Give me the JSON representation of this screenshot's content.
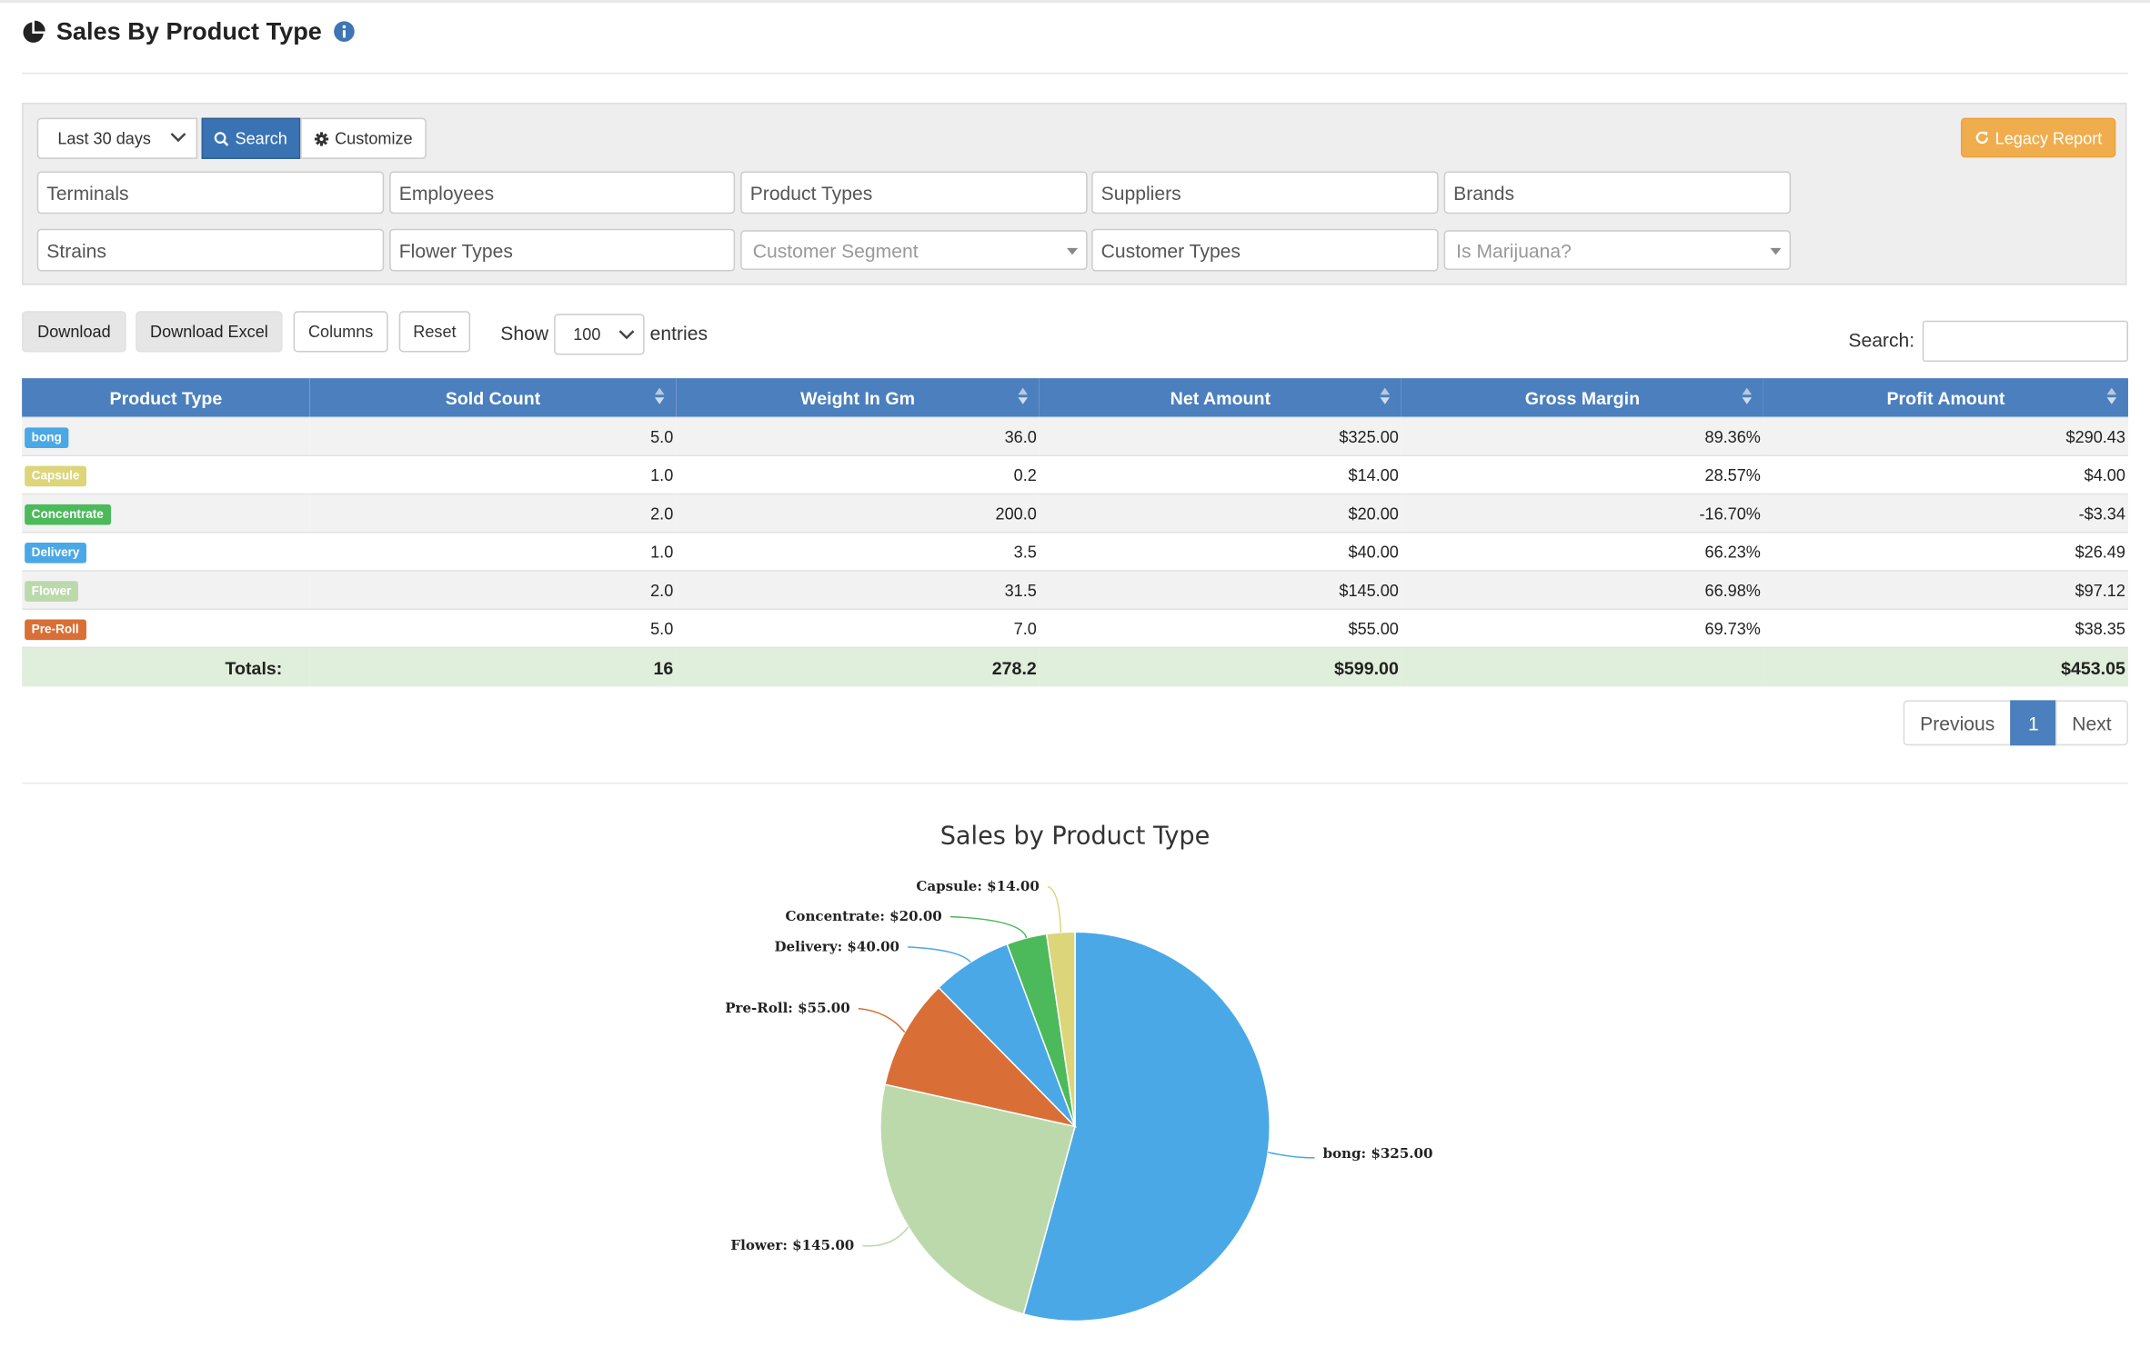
{
  "header": {
    "title": "Sales By Product Type",
    "title_icon": "pie-chart-icon",
    "info_icon": "info-circle-icon"
  },
  "toolbar": {
    "date_range": "Last 30 days",
    "search_label": "Search",
    "customize_label": "Customize",
    "legacy_label": "Legacy Report"
  },
  "filters": {
    "row1": [
      "Terminals",
      "Employees",
      "Product Types",
      "Suppliers",
      "Brands"
    ],
    "row2": [
      "Strains",
      "Flower Types",
      "Customer Segment",
      "Customer Types",
      "Is Marijuana?"
    ]
  },
  "table_controls": {
    "download": "Download",
    "download_excel": "Download Excel",
    "columns": "Columns",
    "reset": "Reset",
    "show": "Show",
    "entries_value": "100",
    "entries": "entries",
    "search_label": "Search:"
  },
  "table": {
    "headers": [
      "Product Type",
      "Sold Count",
      "Weight In Gm",
      "Net Amount",
      "Gross Margin",
      "Profit Amount"
    ],
    "rows": [
      {
        "type": "bong",
        "color": "#4aa8e6",
        "sold": "5.0",
        "weight": "36.0",
        "net": "$325.00",
        "margin": "89.36%",
        "profit": "$290.43"
      },
      {
        "type": "Capsule",
        "color": "#ddd57a",
        "sold": "1.0",
        "weight": "0.2",
        "net": "$14.00",
        "margin": "28.57%",
        "profit": "$4.00"
      },
      {
        "type": "Concentrate",
        "color": "#4cba5b",
        "sold": "2.0",
        "weight": "200.0",
        "net": "$20.00",
        "margin": "-16.70%",
        "profit": "-$3.34"
      },
      {
        "type": "Delivery",
        "color": "#4aa8e6",
        "sold": "1.0",
        "weight": "3.5",
        "net": "$40.00",
        "margin": "66.23%",
        "profit": "$26.49"
      },
      {
        "type": "Flower",
        "color": "#bcd9ac",
        "sold": "2.0",
        "weight": "31.5",
        "net": "$145.00",
        "margin": "66.98%",
        "profit": "$97.12"
      },
      {
        "type": "Pre-Roll",
        "color": "#d96f36",
        "sold": "5.0",
        "weight": "7.0",
        "net": "$55.00",
        "margin": "69.73%",
        "profit": "$38.35"
      }
    ],
    "totals": {
      "label": "Totals:",
      "sold": "16",
      "weight": "278.2",
      "net": "$599.00",
      "margin": "",
      "profit": "$453.05"
    }
  },
  "pagination": {
    "previous": "Previous",
    "current": "1",
    "next": "Next"
  },
  "chart_data": {
    "type": "pie",
    "title": "Sales by Product Type",
    "slices": [
      {
        "label": "bong",
        "value": 325.0,
        "display": "$325.00",
        "color": "#4aa8e6"
      },
      {
        "label": "Flower",
        "value": 145.0,
        "display": "$145.00",
        "color": "#bcd9ac"
      },
      {
        "label": "Pre-Roll",
        "value": 55.0,
        "display": "$55.00",
        "color": "#d96f36"
      },
      {
        "label": "Delivery",
        "value": 40.0,
        "display": "$40.00",
        "color": "#4aa8e6"
      },
      {
        "label": "Concentrate",
        "value": 20.0,
        "display": "$20.00",
        "color": "#4cba5b"
      },
      {
        "label": "Capsule",
        "value": 14.0,
        "display": "$14.00",
        "color": "#ddd57a"
      }
    ]
  }
}
